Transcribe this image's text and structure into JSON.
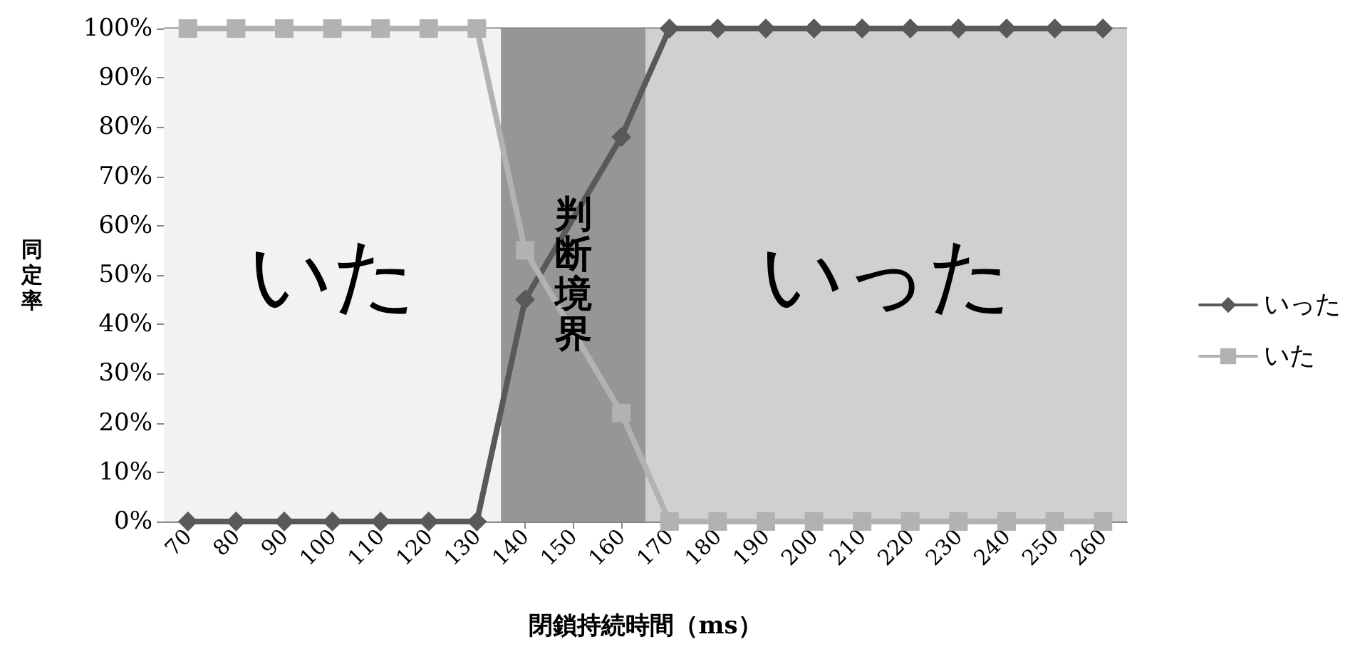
{
  "chart_data": {
    "type": "line",
    "xlabel": "閉鎖持続時間（ms）",
    "ylabel": "同定率",
    "x": [
      70,
      80,
      90,
      100,
      110,
      120,
      130,
      140,
      150,
      160,
      170,
      180,
      190,
      200,
      210,
      220,
      230,
      240,
      250,
      260
    ],
    "xlim": [
      65,
      265
    ],
    "xticks": [
      70,
      80,
      90,
      100,
      110,
      120,
      130,
      140,
      150,
      160,
      170,
      180,
      190,
      200,
      210,
      220,
      230,
      240,
      250,
      260
    ],
    "ylim": [
      0,
      100
    ],
    "yticks": [
      {
        "value": 0,
        "label": "0%"
      },
      {
        "value": 10,
        "label": "10%"
      },
      {
        "value": 20,
        "label": "20%"
      },
      {
        "value": 30,
        "label": "30%"
      },
      {
        "value": 40,
        "label": "40%"
      },
      {
        "value": 50,
        "label": "50%"
      },
      {
        "value": 60,
        "label": "60%"
      },
      {
        "value": 70,
        "label": "70%"
      },
      {
        "value": 80,
        "label": "80%"
      },
      {
        "value": 90,
        "label": "90%"
      },
      {
        "value": 100,
        "label": "100%"
      }
    ],
    "series": [
      {
        "name": "いった",
        "color": "#595959",
        "marker": "diamond",
        "values": [
          0,
          0,
          0,
          0,
          0,
          0,
          0,
          45,
          null,
          78,
          100,
          100,
          100,
          100,
          100,
          100,
          100,
          100,
          100,
          100
        ]
      },
      {
        "name": "いた",
        "color": "#b2b2b2",
        "marker": "square",
        "values": [
          100,
          100,
          100,
          100,
          100,
          100,
          100,
          55,
          null,
          22,
          0,
          0,
          0,
          0,
          0,
          0,
          0,
          0,
          0,
          0
        ]
      }
    ],
    "bands": [
      {
        "axis": "x",
        "from": 65,
        "to": 135,
        "label": "いた",
        "color": "#f2f2f2"
      },
      {
        "axis": "x",
        "from": 135,
        "to": 165,
        "label": "判断境界",
        "color": "#969696"
      },
      {
        "axis": "x",
        "from": 165,
        "to": 265,
        "label": "いった",
        "color": "#d0d0d0"
      }
    ],
    "grid": "y",
    "legend": "right",
    "line_style": "solid"
  }
}
